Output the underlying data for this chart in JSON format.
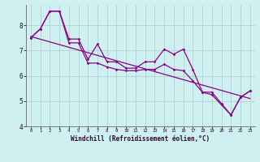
{
  "xlabel": "Windchill (Refroidissement éolien,°C)",
  "bg_color": "#cff0f0",
  "grid_color": "#b0c8c8",
  "line_color": "#880088",
  "xlim": [
    -0.5,
    23.5
  ],
  "ylim": [
    4.0,
    8.8
  ],
  "yticks": [
    4,
    5,
    6,
    7,
    8
  ],
  "xticks": [
    0,
    1,
    2,
    3,
    4,
    5,
    6,
    7,
    8,
    9,
    10,
    11,
    12,
    13,
    14,
    15,
    16,
    17,
    18,
    19,
    20,
    21,
    22,
    23
  ],
  "series1_x": [
    0,
    1,
    2,
    3,
    4,
    5,
    6,
    7,
    8,
    9,
    10,
    11,
    12,
    13,
    14,
    15,
    16,
    17,
    18,
    19,
    20,
    21,
    22,
    23
  ],
  "series1_y": [
    7.5,
    7.85,
    8.55,
    8.55,
    7.45,
    7.45,
    6.65,
    7.25,
    6.55,
    6.55,
    6.3,
    6.3,
    6.55,
    6.55,
    7.05,
    6.85,
    7.05,
    6.25,
    5.35,
    5.35,
    4.9,
    4.45,
    5.15,
    5.4
  ],
  "series2_x": [
    0,
    1,
    2,
    3,
    4,
    5,
    6,
    7,
    8,
    9,
    10,
    11,
    12,
    13,
    14,
    15,
    16,
    17,
    18,
    19,
    20,
    21,
    22,
    23
  ],
  "series2_y": [
    7.5,
    7.85,
    8.55,
    8.55,
    7.3,
    7.3,
    6.5,
    6.5,
    6.35,
    6.25,
    6.2,
    6.2,
    6.25,
    6.25,
    6.45,
    6.25,
    6.2,
    5.8,
    5.35,
    5.25,
    4.85,
    4.45,
    5.15,
    5.4
  ],
  "trend_x": [
    0,
    23
  ],
  "trend_y": [
    7.55,
    5.1
  ]
}
